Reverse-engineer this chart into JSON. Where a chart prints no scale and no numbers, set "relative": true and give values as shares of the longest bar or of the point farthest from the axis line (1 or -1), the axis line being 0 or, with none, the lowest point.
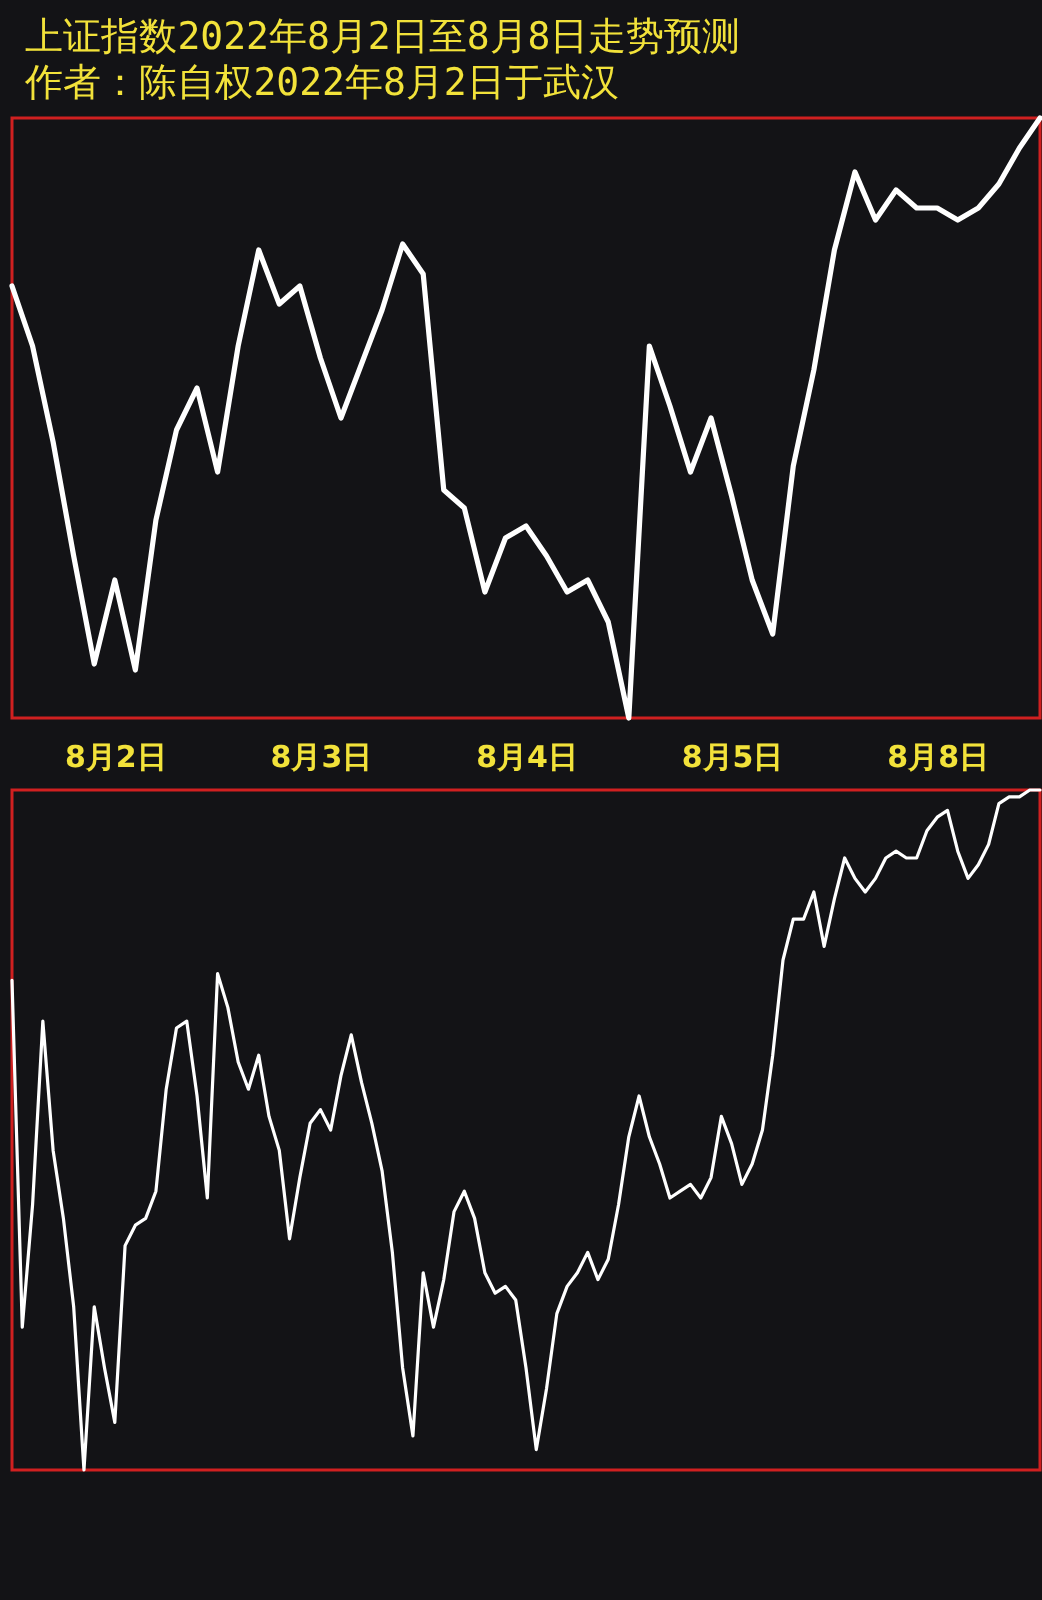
{
  "chart_data": [
    {
      "type": "line",
      "title": "上证指数2022年8月2日至8月8日走势预测",
      "subtitle": "作者：陈自权2022年8月2日于武汉",
      "relative": true,
      "categories": [
        null,
        null,
        null,
        null,
        null,
        "8月2日",
        null,
        null,
        null,
        null,
        null,
        null,
        null,
        null,
        null,
        "8月3日",
        null,
        null,
        null,
        null,
        null,
        null,
        null,
        null,
        null,
        "8月4日",
        null,
        null,
        null,
        null,
        null,
        null,
        null,
        null,
        null,
        "8月5日",
        null,
        null,
        null,
        null,
        null,
        null,
        null,
        null,
        null,
        "8月8日",
        null,
        null,
        null,
        null,
        null
      ],
      "series": [
        {
          "color": "#ffffff",
          "values": [
            0.72,
            0.62,
            0.46,
            0.27,
            0.09,
            0.23,
            0.08,
            0.33,
            0.48,
            0.55,
            0.41,
            0.62,
            0.78,
            0.69,
            0.72,
            0.6,
            0.5,
            0.59,
            0.68,
            0.79,
            0.74,
            0.38,
            0.35,
            0.21,
            0.3,
            0.32,
            0.27,
            0.21,
            0.23,
            0.16,
            0,
            0.62,
            0.52,
            0.41,
            0.5,
            0.37,
            0.23,
            0.14,
            0.42,
            0.58,
            0.78,
            0.91,
            0.83,
            0.88,
            0.85,
            0.85,
            0.83,
            0.85,
            0.89,
            0.95,
            1
          ]
        }
      ]
    },
    {
      "type": "line",
      "relative": true,
      "categories": [
        null,
        null,
        null,
        null,
        null,
        null,
        null,
        null,
        null,
        null,
        null,
        null,
        null,
        null,
        null,
        null,
        null,
        null,
        null,
        null,
        null,
        null,
        null,
        null,
        null,
        null,
        null,
        null,
        null,
        null,
        null,
        null,
        null,
        null,
        null,
        null,
        null,
        null,
        null,
        null,
        null,
        null,
        null,
        null,
        null,
        null,
        null,
        null,
        null,
        null,
        null,
        null,
        null,
        null,
        null,
        null,
        null,
        null,
        null,
        null,
        null,
        null,
        null,
        null,
        null,
        null,
        null,
        null,
        null,
        null,
        null,
        null,
        null,
        null,
        null,
        null,
        null,
        null,
        null,
        null,
        null,
        null,
        null,
        null,
        null,
        null,
        null,
        null,
        null,
        null,
        null,
        null,
        null,
        null,
        null,
        null,
        null,
        null,
        null,
        null,
        null
      ],
      "series": [
        {
          "color": "#ffffff",
          "values": [
            0.72,
            0.21,
            0.39,
            0.66,
            0.47,
            0.37,
            0.24,
            0,
            0.24,
            0.15,
            0.07,
            0.33,
            0.36,
            0.37,
            0.41,
            0.56,
            0.65,
            0.66,
            0.55,
            0.4,
            0.73,
            0.68,
            0.6,
            0.56,
            0.61,
            0.52,
            0.47,
            0.34,
            0.43,
            0.51,
            0.53,
            0.5,
            0.58,
            0.64,
            0.57,
            0.51,
            0.44,
            0.32,
            0.15,
            0.05,
            0.29,
            0.21,
            0.28,
            0.38,
            0.41,
            0.37,
            0.29,
            0.26,
            0.27,
            0.25,
            0.15,
            0.03,
            0.12,
            0.23,
            0.27,
            0.29,
            0.32,
            0.28,
            0.31,
            0.39,
            0.49,
            0.55,
            0.49,
            0.45,
            0.4,
            0.41,
            0.42,
            0.4,
            0.43,
            0.52,
            0.48,
            0.42,
            0.45,
            0.5,
            0.61,
            0.75,
            0.81,
            0.81,
            0.85,
            0.77,
            0.84,
            0.9,
            0.87,
            0.85,
            0.87,
            0.9,
            0.91,
            0.9,
            0.9,
            0.94,
            0.96,
            0.97,
            0.91,
            0.87,
            0.89,
            0.92,
            0.98,
            0.99,
            0.99,
            1,
            1
          ]
        }
      ]
    }
  ]
}
